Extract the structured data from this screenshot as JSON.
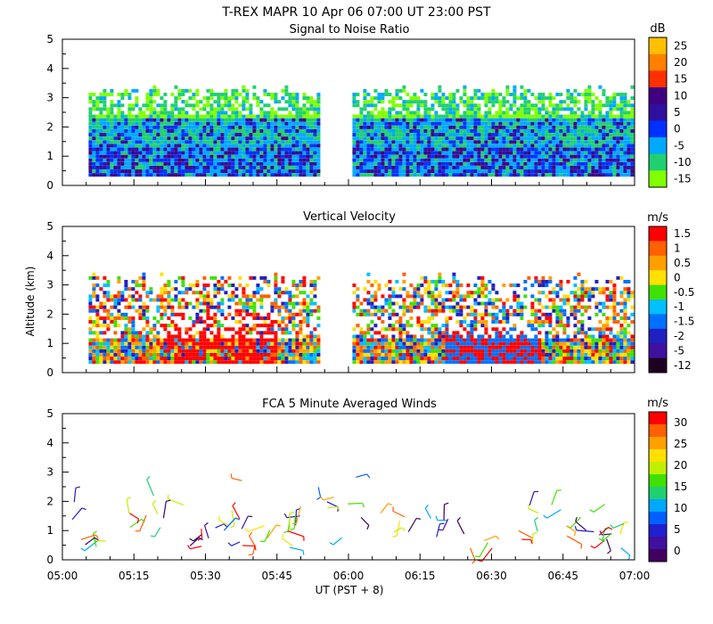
{
  "figure": {
    "title": "T-REX  MAPR 10 Apr 06  07:00 UT  23:00  PST",
    "ylabel": "Altitude (km)",
    "xlabel": "UT  (PST + 8)",
    "x_ticks": [
      "05:00",
      "05:15",
      "05:30",
      "05:45",
      "06:00",
      "06:15",
      "06:30",
      "06:45",
      "07:00"
    ]
  },
  "chart_data": [
    {
      "type": "heatmap",
      "title": "Signal to Noise Ratio",
      "units": "dB",
      "x_range_minutes": [
        0,
        120
      ],
      "ylim": [
        0,
        5
      ],
      "y_ticks": [
        "0",
        "1",
        "2",
        "3",
        "4",
        "5"
      ],
      "data_gap_minutes": [
        55,
        60
      ],
      "colorbar": {
        "labels": [
          "25",
          "20",
          "15",
          "10",
          "5",
          "0",
          "-5",
          "-10",
          "-15"
        ],
        "colors": [
          "#ffc000",
          "#ff8000",
          "#ff3000",
          "#400080",
          "#3010a0",
          "#0030ff",
          "#00a8ff",
          "#20d070",
          "#80ff00"
        ]
      }
    },
    {
      "type": "heatmap",
      "title": "Vertical Velocity",
      "units": "m/s",
      "x_range_minutes": [
        0,
        120
      ],
      "ylim": [
        0,
        5
      ],
      "y_ticks": [
        "0",
        "1",
        "2",
        "3",
        "4",
        "5"
      ],
      "data_gap_minutes": [
        55,
        60
      ],
      "colorbar": {
        "labels": [
          "1.5",
          "1",
          "0.5",
          "0",
          "-0.5",
          "-1",
          "-1.5",
          "-2",
          "-5",
          "-12"
        ],
        "colors": [
          "#ff0000",
          "#ff6000",
          "#ffa000",
          "#ffe000",
          "#40e000",
          "#00c0ff",
          "#0070ff",
          "#2020c0",
          "#4010a0",
          "#200020"
        ]
      }
    },
    {
      "type": "scatter",
      "title": "FCA 5 Minute Averaged Winds",
      "units": "m/s",
      "x_range_minutes": [
        0,
        120
      ],
      "ylim": [
        0,
        5
      ],
      "y_ticks": [
        "0",
        "1",
        "2",
        "3",
        "4",
        "5"
      ],
      "colorbar": {
        "labels": [
          "30",
          "25",
          "20",
          "15",
          "10",
          "5",
          "0"
        ],
        "colors": [
          "#ff0000",
          "#ff6000",
          "#ffa000",
          "#ffe000",
          "#c0f000",
          "#40e000",
          "#20d070",
          "#00a8ff",
          "#0060ff",
          "#2020d0",
          "#4010a0",
          "#400060"
        ]
      }
    }
  ]
}
